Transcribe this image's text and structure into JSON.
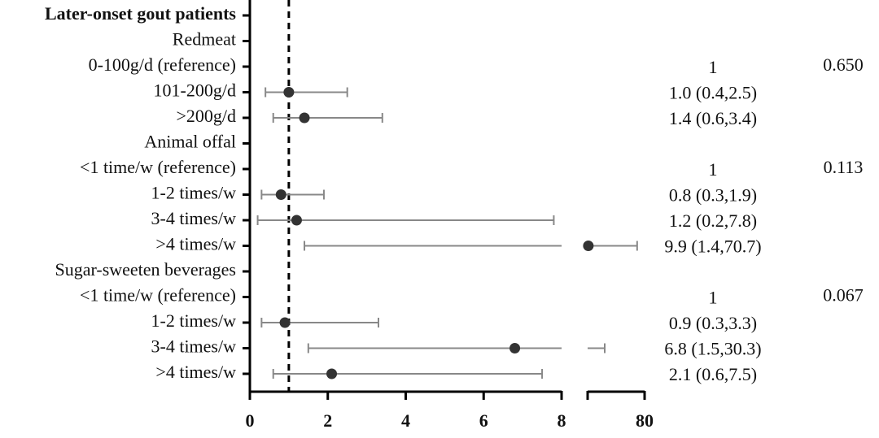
{
  "chart_data": {
    "type": "forest",
    "reference": 1,
    "segments": [
      {
        "xlim": [
          0,
          8
        ],
        "xticks": [
          0,
          2,
          4,
          6,
          8
        ]
      },
      {
        "xlim": [
          9,
          80
        ],
        "xticks": [
          80
        ]
      }
    ],
    "rows": [
      {
        "label": "Later-onset gout patients",
        "bold": true
      },
      {
        "label": "Redmeat"
      },
      {
        "label": "0-100g/d (reference)",
        "text": "1",
        "p": "0.650"
      },
      {
        "label": "101-200g/d",
        "estimate": 1.0,
        "lower": 0.4,
        "upper": 2.5,
        "text": "1.0 (0.4,2.5)"
      },
      {
        "label": ">200g/d",
        "estimate": 1.4,
        "lower": 0.6,
        "upper": 3.4,
        "text": "1.4 (0.6,3.4)"
      },
      {
        "label": "Animal offal"
      },
      {
        "label": "<1 time/w (reference)",
        "text": "1",
        "p": "0.113"
      },
      {
        "label": "1-2 times/w",
        "estimate": 0.8,
        "lower": 0.3,
        "upper": 1.9,
        "text": "0.8 (0.3,1.9)"
      },
      {
        "label": "3-4 times/w",
        "estimate": 1.2,
        "lower": 0.2,
        "upper": 7.8,
        "text": "1.2 (0.2,7.8)"
      },
      {
        "label": ">4 times/w",
        "estimate": 9.9,
        "lower": 1.4,
        "upper": 70.7,
        "text": "9.9 (1.4,70.7)"
      },
      {
        "label": "Sugar-sweeten beverages"
      },
      {
        "label": "<1 time/w (reference)",
        "text": "1",
        "p": "0.067"
      },
      {
        "label": "1-2 times/w",
        "estimate": 0.9,
        "lower": 0.3,
        "upper": 3.3,
        "text": "0.9 (0.3,3.3)"
      },
      {
        "label": "3-4 times/w",
        "estimate": 6.8,
        "lower": 1.5,
        "upper": 30.3,
        "text": "6.8 (1.5,30.3)"
      },
      {
        "label": ">4 times/w",
        "estimate": 2.1,
        "lower": 0.6,
        "upper": 7.5,
        "text": "2.1 (0.6,7.5)"
      }
    ]
  }
}
